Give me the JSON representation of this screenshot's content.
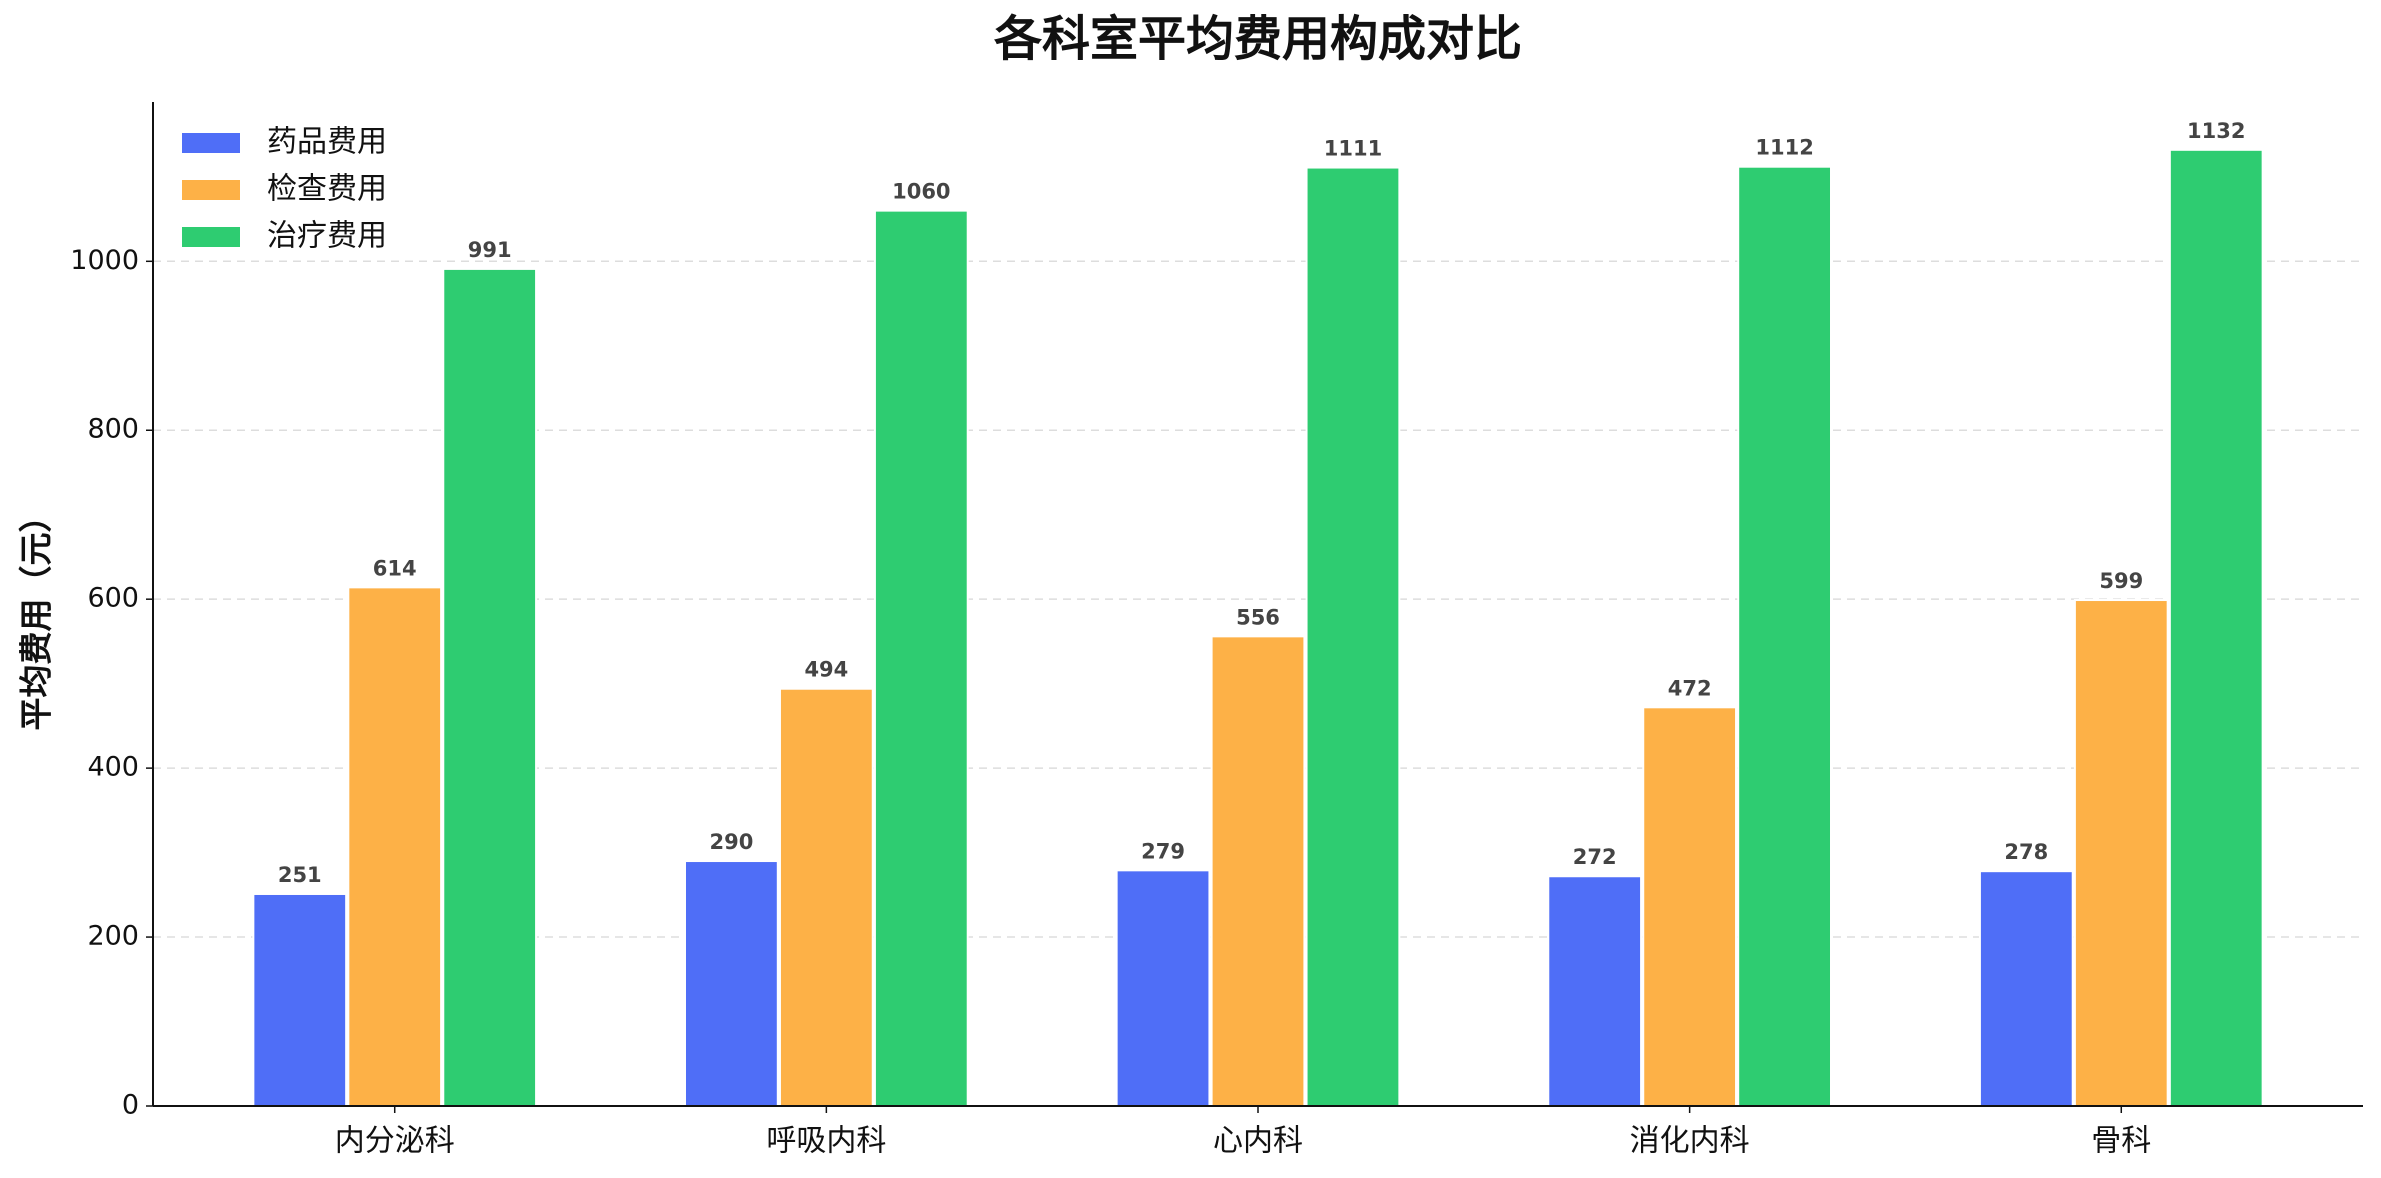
{
  "chart_data": {
    "type": "bar",
    "title": "各科室平均费用构成对比",
    "y_label": "平均费用（元）",
    "categories": [
      "内分泌科",
      "呼吸内科",
      "心内科",
      "消化内科",
      "骨科"
    ],
    "series": [
      {
        "name": "药品费用",
        "color": "#4f6ef7",
        "values": [
          251,
          290,
          279,
          272,
          278
        ]
      },
      {
        "name": "检查费用",
        "color": "#fdb147",
        "values": [
          614,
          494,
          556,
          472,
          599
        ]
      },
      {
        "name": "治疗费用",
        "color": "#2ecc71",
        "values": [
          991,
          1060,
          1111,
          1112,
          1132
        ]
      }
    ],
    "ylim": [
      0,
      1188.6
    ],
    "yticks": [
      0,
      200,
      400,
      600,
      800,
      1000
    ],
    "grid": true,
    "legend": "upper left"
  }
}
